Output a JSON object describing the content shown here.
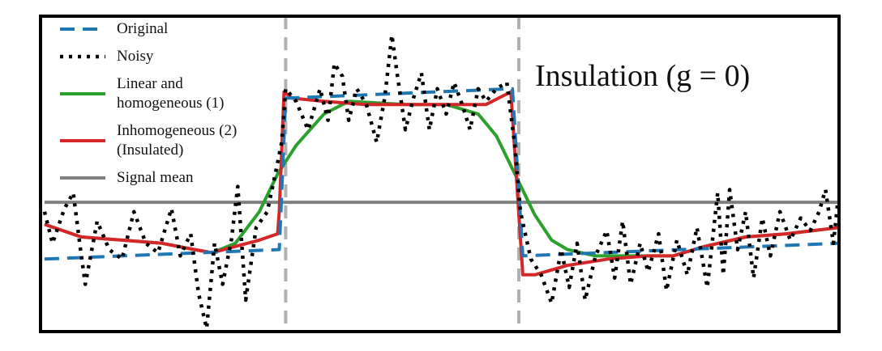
{
  "chart_data": {
    "type": "line",
    "title": "Insulation (g = 0)",
    "xlim": [
      0,
      100
    ],
    "ylim": [
      0,
      100
    ],
    "vlines": [
      30.7,
      59.9
    ],
    "vline_color": "#b0b0b0",
    "series": [
      {
        "name": "Original",
        "color": "#1f77b4",
        "linestyle": "dashed",
        "x": [
          0.5,
          29.9,
          30.7,
          59.1,
          60.4,
          100
        ],
        "values": [
          23,
          26,
          74,
          77,
          24,
          28
        ]
      },
      {
        "name": "Noisy",
        "color": "#000000",
        "linestyle": "dotted",
        "x": [
          0.5,
          1.5,
          3.0,
          4.1,
          4.9,
          5.6,
          7.1,
          8.6,
          10.2,
          11.7,
          13.2,
          14.7,
          16.4,
          17.5,
          18.8,
          19.8,
          20.8,
          21.8,
          22.8,
          23.9,
          24.7,
          25.7,
          27.0,
          28.4,
          29.4,
          30.2,
          30.7,
          32.0,
          33.5,
          35.0,
          36.0,
          36.8,
          37.8,
          38.6,
          39.6,
          40.8,
          42.1,
          43.1,
          44.0,
          44.7,
          45.7,
          46.7,
          47.7,
          48.7,
          49.7,
          50.8,
          51.8,
          52.8,
          53.8,
          54.8,
          55.8,
          57.1,
          58.4,
          59.4,
          60.1,
          61.4,
          62.7,
          64.0,
          65.2,
          66.2,
          67.2,
          68.2,
          69.5,
          70.9,
          71.9,
          72.9,
          73.9,
          75.1,
          76.1,
          77.4,
          78.4,
          79.7,
          81.0,
          82.2,
          83.5,
          84.8,
          85.5,
          86.3,
          87.3,
          88.3,
          89.3,
          90.4,
          91.4,
          92.6,
          93.9,
          95.2,
          96.4,
          97.5,
          98.3,
          99.3,
          99.8
        ],
        "values": [
          38,
          28,
          39,
          44,
          28,
          15,
          35,
          26,
          23,
          38,
          28,
          25,
          39,
          24,
          31,
          12,
          1,
          28,
          15,
          29,
          46,
          10,
          33,
          38,
          50,
          60,
          77,
          73,
          64,
          77,
          67,
          85,
          81,
          67,
          77,
          72,
          60,
          74,
          94,
          81,
          64,
          74,
          82,
          64,
          77,
          69,
          79,
          72,
          64,
          77,
          73,
          77,
          79,
          59,
          38,
          23,
          18,
          9,
          26,
          14,
          28,
          10,
          24,
          32,
          17,
          35,
          15,
          28,
          19,
          31,
          13,
          29,
          18,
          33,
          14,
          44,
          18,
          45,
          26,
          38,
          17,
          36,
          24,
          38,
          29,
          36,
          32,
          38,
          45,
          28,
          40
        ]
      },
      {
        "name": "Linear and homogeneous (1)",
        "color": "#2ca02c",
        "linestyle": "solid",
        "x": [
          0.5,
          5.1,
          10.2,
          15.2,
          19.3,
          21.5,
          24.4,
          27.4,
          29.7,
          32.0,
          35.5,
          38.6,
          45.7,
          50.8,
          54.8,
          57.1,
          59.4,
          61.9,
          64.0,
          66.0,
          69.5,
          76.1,
          79.2,
          83.2,
          88.3,
          93.4,
          100
        ],
        "values": [
          34,
          30,
          29,
          28,
          26,
          25,
          28,
          38,
          50,
          59,
          69,
          73,
          72,
          72,
          69,
          62,
          50,
          37,
          29,
          26,
          24,
          24,
          24,
          27,
          30,
          31,
          33
        ]
      },
      {
        "name": "Inhomogeneous (2) (Insulated)",
        "color": "#d62728",
        "linestyle": "solid",
        "x": [
          0.5,
          5.1,
          10.2,
          15.2,
          19.3,
          21.5,
          24.4,
          27.4,
          29.7,
          29.9,
          30.5,
          31.5,
          35.5,
          40.6,
          50.8,
          55.8,
          58.9,
          60.4,
          61.9,
          66.0,
          71.1,
          76.1,
          79.2,
          83.2,
          88.3,
          93.4,
          100
        ],
        "values": [
          34,
          30,
          29,
          28,
          26,
          25,
          27,
          29,
          31,
          38,
          76,
          74,
          73,
          72,
          72,
          72,
          76,
          18,
          18,
          21,
          23,
          24,
          24,
          27,
          30,
          31,
          33
        ]
      },
      {
        "name": "Signal mean",
        "color": "#808080",
        "linestyle": "solid",
        "x": [
          0.5,
          100
        ],
        "values": [
          41,
          41
        ]
      }
    ]
  }
}
